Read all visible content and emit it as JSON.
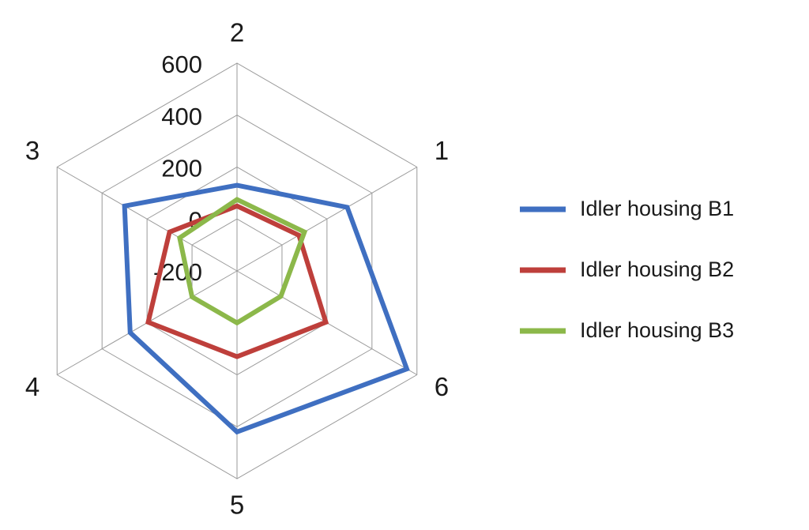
{
  "chart_data": {
    "type": "radar",
    "categories": [
      "1",
      "2",
      "3",
      "4",
      "5",
      "6"
    ],
    "ylim": [
      -200,
      600
    ],
    "yticks": [
      -200,
      0,
      200,
      400,
      600
    ],
    "grid": true,
    "legend": "right",
    "series": [
      {
        "name": "Idler housing B1",
        "color": "#3f6fc1",
        "values": [
          290,
          130,
          300,
          275,
          420,
          555
        ]
      },
      {
        "name": "Idler housing B2",
        "color": "#be3f3b",
        "values": [
          75,
          50,
          100,
          195,
          130,
          195
        ]
      },
      {
        "name": "Idler housing B3",
        "color": "#8cb84a",
        "values": [
          100,
          75,
          55,
          0,
          0,
          -5
        ]
      }
    ]
  }
}
